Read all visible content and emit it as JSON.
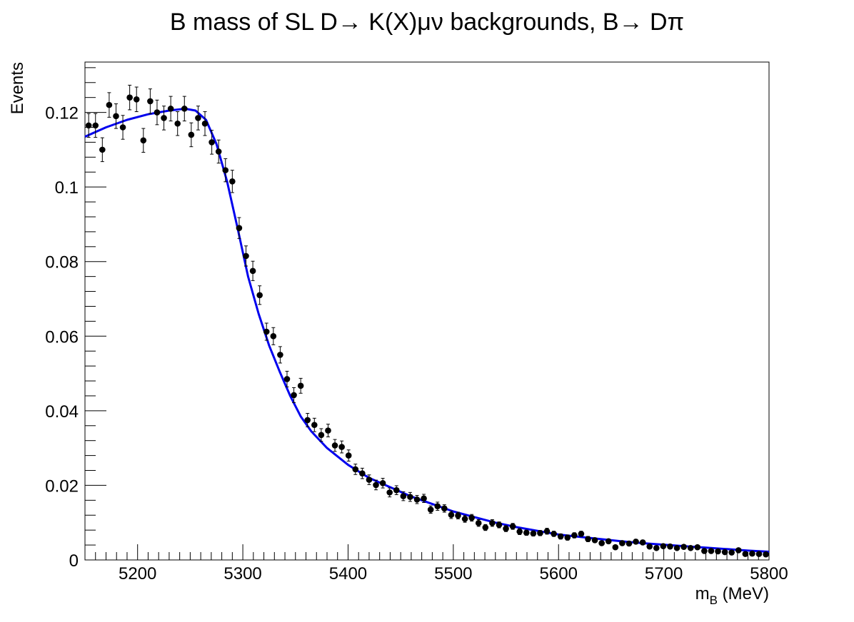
{
  "chart_data": {
    "type": "scatter",
    "title": "B mass of SL D→ K(X)μν backgrounds, B→ Dπ",
    "xlabel": "m_B (MeV)",
    "xlabel_main": "m",
    "xlabel_sub": "B",
    "xlabel_unit": " (MeV)",
    "ylabel": "Events",
    "xlim": [
      5150,
      5800
    ],
    "ylim": [
      0,
      0.1335
    ],
    "x_ticks": [
      5200,
      5300,
      5400,
      5500,
      5600,
      5700,
      5800
    ],
    "x_tick_labels": [
      "5200",
      "5300",
      "5400",
      "5500",
      "5600",
      "5700",
      "5800"
    ],
    "y_ticks": [
      0,
      0.02,
      0.04,
      0.06,
      0.08,
      0.1,
      0.12
    ],
    "y_tick_labels": [
      "0",
      "0.02",
      "0.04",
      "0.06",
      "0.08",
      "0.1",
      "0.12"
    ],
    "grid": false,
    "legend": "none",
    "series": [
      {
        "kind": "data-points-with-errors",
        "color": "#000000",
        "x_start": 5153.5,
        "x_step": 6.5,
        "values": [
          0.1165,
          0.1165,
          0.11,
          0.122,
          0.119,
          0.116,
          0.124,
          0.1235,
          0.1125,
          0.123,
          0.12,
          0.1185,
          0.121,
          0.117,
          0.121,
          0.114,
          0.1185,
          0.117,
          0.112,
          0.1095,
          0.1045,
          0.1015,
          0.089,
          0.0815,
          0.0775,
          0.071,
          0.0612,
          0.06,
          0.055,
          0.0485,
          0.0442,
          0.0467,
          0.0375,
          0.0362,
          0.0335,
          0.0347,
          0.0307,
          0.0303,
          0.028,
          0.0243,
          0.0232,
          0.0215,
          0.0201,
          0.0206,
          0.0181,
          0.0187,
          0.0171,
          0.0169,
          0.0162,
          0.0165,
          0.0135,
          0.0144,
          0.0138,
          0.0121,
          0.0119,
          0.011,
          0.0113,
          0.0099,
          0.0087,
          0.0099,
          0.0094,
          0.0084,
          0.009,
          0.0076,
          0.0073,
          0.0071,
          0.0072,
          0.0077,
          0.007,
          0.0063,
          0.006,
          0.0066,
          0.007,
          0.0056,
          0.0053,
          0.0045,
          0.005,
          0.0034,
          0.0045,
          0.0044,
          0.0049,
          0.0047,
          0.0036,
          0.0032,
          0.0037,
          0.0036,
          0.0032,
          0.0035,
          0.0032,
          0.0034,
          0.0024,
          0.0024,
          0.0023,
          0.0021,
          0.002,
          0.0026,
          0.0016,
          0.0017,
          0.0016,
          0.0015
        ],
        "errors": [
          0.0032,
          0.0032,
          0.0032,
          0.0033,
          0.0033,
          0.0032,
          0.0033,
          0.0033,
          0.0032,
          0.0033,
          0.0033,
          0.0032,
          0.0033,
          0.0032,
          0.0033,
          0.0032,
          0.0032,
          0.0032,
          0.0032,
          0.0031,
          0.0031,
          0.003,
          0.0028,
          0.0027,
          0.0026,
          0.0025,
          0.0023,
          0.0023,
          0.0022,
          0.0021,
          0.002,
          0.002,
          0.0018,
          0.0018,
          0.0017,
          0.0017,
          0.0016,
          0.0016,
          0.0015,
          0.0014,
          0.0014,
          0.0013,
          0.0013,
          0.0013,
          0.0012,
          0.0012,
          0.0012,
          0.0012,
          0.0011,
          0.0011,
          0.001,
          0.0011,
          0.001,
          0.001,
          0.0009,
          0.0009,
          0.0009,
          0.0009,
          0.0008,
          0.0009,
          0.0008,
          0.0008,
          0.0008,
          0.0008,
          0.0007,
          0.0007,
          0.0007,
          0.0008,
          0.0007,
          0.0007,
          0.0007,
          0.0007,
          0.0007,
          0.0007,
          0.0006,
          0.0006,
          0.0006,
          0.0005,
          0.0006,
          0.0006,
          0.0006,
          0.0006,
          0.0005,
          0.0005,
          0.0005,
          0.0005,
          0.0005,
          0.0005,
          0.0005,
          0.0005,
          0.0004,
          0.0004,
          0.0004,
          0.0004,
          0.0004,
          0.0004,
          0.0004,
          0.0004,
          0.0004,
          0.0004
        ]
      },
      {
        "kind": "fit-curve",
        "color": "#0000ee",
        "x": [
          5150,
          5170,
          5190,
          5210,
          5230,
          5245,
          5255,
          5265,
          5275,
          5285,
          5295,
          5305,
          5315,
          5325,
          5335,
          5345,
          5355,
          5365,
          5380,
          5400,
          5420,
          5440,
          5460,
          5480,
          5500,
          5520,
          5540,
          5560,
          5580,
          5600,
          5620,
          5640,
          5660,
          5680,
          5700,
          5720,
          5740,
          5760,
          5780,
          5800
        ],
        "y": [
          0.1135,
          0.116,
          0.118,
          0.1195,
          0.1205,
          0.121,
          0.1205,
          0.118,
          0.1115,
          0.1015,
          0.089,
          0.076,
          0.066,
          0.0575,
          0.0505,
          0.044,
          0.0385,
          0.0345,
          0.03,
          0.0255,
          0.022,
          0.0195,
          0.017,
          0.015,
          0.013,
          0.0115,
          0.01,
          0.0088,
          0.0078,
          0.0068,
          0.0062,
          0.0056,
          0.005,
          0.0045,
          0.0041,
          0.0037,
          0.0033,
          0.0029,
          0.0025,
          0.0022
        ]
      }
    ]
  }
}
